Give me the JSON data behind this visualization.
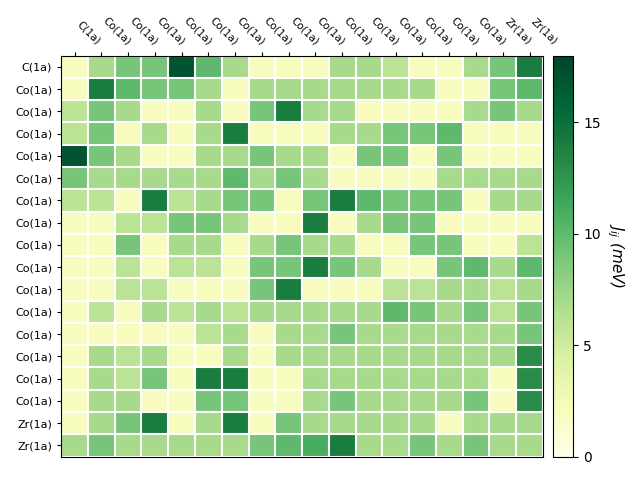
{
  "row_labels": [
    "C(1a)",
    "Co(1a)",
    "Co(1a)",
    "Co(1a)",
    "Co(1a)",
    "Co(1a)",
    "Co(1a)",
    "Co(1a)",
    "Co(1a)",
    "Co(1a)",
    "Co(1a)",
    "Co(1a)",
    "Co(1a)",
    "Co(1a)",
    "Co(1a)",
    "Co(1a)",
    "Zr(1a)",
    "Zr(1a)"
  ],
  "col_labels": [
    "C(1a)",
    "Co(1a)",
    "Co(1a)",
    "Co(1a)",
    "Co(1a)",
    "Co(1a)",
    "Co(1a)",
    "Co(1a)",
    "Co(1a)",
    "Co(1a)",
    "Co(1a)",
    "Co(1a)",
    "Co(1a)",
    "Co(1a)",
    "Co(1a)",
    "Co(1a)",
    "Zr(1a)",
    "Zr(1a)"
  ],
  "matrix": [
    [
      2,
      7,
      9,
      9,
      17,
      10,
      7,
      2,
      2,
      2,
      7,
      7,
      6,
      2,
      2,
      7,
      9,
      14
    ],
    [
      2,
      14,
      10,
      9,
      9,
      7,
      2,
      7,
      7,
      7,
      7,
      7,
      7,
      7,
      2,
      2,
      9,
      10
    ],
    [
      6,
      9,
      7,
      2,
      2,
      7,
      2,
      9,
      14,
      7,
      7,
      2,
      2,
      2,
      2,
      7,
      9,
      7
    ],
    [
      6,
      9,
      2,
      7,
      2,
      7,
      14,
      2,
      2,
      2,
      7,
      7,
      9,
      9,
      10,
      2,
      2,
      2
    ],
    [
      17,
      9,
      7,
      2,
      2,
      7,
      7,
      9,
      7,
      7,
      2,
      9,
      9,
      2,
      9,
      2,
      2,
      2
    ],
    [
      9,
      7,
      7,
      7,
      7,
      7,
      10,
      7,
      9,
      7,
      2,
      2,
      2,
      2,
      7,
      7,
      7,
      7
    ],
    [
      6,
      6,
      2,
      14,
      6,
      7,
      9,
      9,
      2,
      9,
      14,
      10,
      9,
      9,
      9,
      2,
      7,
      7
    ],
    [
      2,
      2,
      6,
      6,
      9,
      9,
      7,
      2,
      2,
      14,
      2,
      7,
      9,
      9,
      2,
      2,
      2,
      2
    ],
    [
      2,
      2,
      9,
      2,
      7,
      7,
      2,
      7,
      9,
      7,
      7,
      2,
      2,
      9,
      9,
      2,
      2,
      6
    ],
    [
      2,
      2,
      6,
      2,
      6,
      6,
      2,
      9,
      9,
      14,
      9,
      7,
      2,
      2,
      9,
      10,
      7,
      10
    ],
    [
      2,
      2,
      6,
      6,
      2,
      2,
      2,
      9,
      14,
      2,
      2,
      2,
      6,
      6,
      7,
      7,
      6,
      7
    ],
    [
      2,
      6,
      2,
      7,
      6,
      7,
      6,
      7,
      7,
      7,
      7,
      7,
      10,
      9,
      7,
      9,
      6,
      9
    ],
    [
      2,
      2,
      2,
      2,
      2,
      6,
      7,
      2,
      7,
      7,
      9,
      7,
      7,
      7,
      7,
      7,
      7,
      9
    ],
    [
      2,
      7,
      6,
      7,
      2,
      2,
      7,
      2,
      7,
      7,
      7,
      7,
      7,
      7,
      7,
      7,
      7,
      13
    ],
    [
      2,
      7,
      6,
      9,
      2,
      14,
      14,
      2,
      2,
      7,
      7,
      7,
      7,
      7,
      7,
      7,
      2,
      13
    ],
    [
      2,
      7,
      7,
      2,
      2,
      9,
      9,
      2,
      2,
      7,
      9,
      7,
      7,
      7,
      7,
      9,
      2,
      13
    ],
    [
      2,
      7,
      9,
      14,
      2,
      7,
      14,
      2,
      9,
      7,
      7,
      7,
      7,
      7,
      2,
      7,
      7,
      7
    ],
    [
      7,
      9,
      7,
      7,
      7,
      7,
      7,
      9,
      10,
      11,
      14,
      7,
      7,
      9,
      7,
      9,
      7,
      7
    ]
  ],
  "vmin": 0,
  "vmax": 18,
  "cmap": "YlGn",
  "colorbar_label": "$J_{ij}$ (meV)",
  "colorbar_ticks": [
    0,
    5,
    10,
    15
  ],
  "figsize": [
    6.4,
    4.8
  ],
  "dpi": 100
}
